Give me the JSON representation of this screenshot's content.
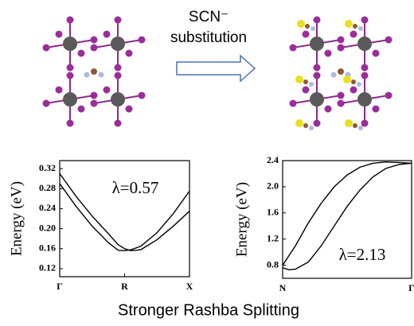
{
  "arrow_label": [
    "SCN⁻",
    "substitution"
  ],
  "caption": "Stronger Rashba Splitting",
  "chart_data": [
    {
      "type": "line",
      "ylabel": "Energy (eV)",
      "annotation": "λ=0.57",
      "x": [
        0,
        0.25,
        0.5,
        0.75,
        0.9,
        1.0,
        1.1,
        1.25,
        1.5,
        1.75,
        2.0
      ],
      "xlim": [
        0,
        2
      ],
      "xticks": [
        {
          "value": 0,
          "label": "Γ"
        },
        {
          "value": 1,
          "label": "R"
        },
        {
          "value": 2,
          "label": "X"
        }
      ],
      "ylim": [
        0.104,
        0.336
      ],
      "yticks": [
        0.12,
        0.16,
        {
          "value": 0.2,
          "label": "0.20"
        },
        0.24,
        0.28,
        0.32
      ],
      "series": [
        {
          "color": "#000000",
          "values": [
            0.29,
            0.245,
            0.205,
            0.172,
            0.157,
            0.156,
            0.158,
            0.165,
            0.192,
            0.23,
            0.275
          ]
        },
        {
          "color": "#000000",
          "values": [
            0.31,
            0.265,
            0.225,
            0.19,
            0.168,
            0.16,
            0.156,
            0.158,
            0.178,
            0.205,
            0.235
          ]
        }
      ]
    },
    {
      "type": "line",
      "ylabel": "Energy (eV)",
      "annotation": "λ=2.13",
      "x": [
        0,
        0.05,
        0.1,
        0.2,
        0.3,
        0.4,
        0.5,
        0.6,
        0.7,
        0.8,
        0.9,
        1.0
      ],
      "xlim": [
        0,
        1
      ],
      "xticks": [
        {
          "value": 0,
          "label": "N"
        },
        {
          "value": 1,
          "label": "Γ"
        }
      ],
      "ylim": [
        0.6,
        2.4
      ],
      "yticks": [
        0.8,
        1.2,
        1.6,
        {
          "value": 2,
          "label": "2.0"
        },
        2.4
      ],
      "series": [
        {
          "color": "#000000",
          "values": [
            0.8,
            0.95,
            1.1,
            1.45,
            1.75,
            2.0,
            2.18,
            2.3,
            2.36,
            2.38,
            2.37,
            2.36
          ]
        },
        {
          "color": "#000000",
          "values": [
            0.76,
            0.73,
            0.74,
            0.85,
            1.1,
            1.4,
            1.7,
            1.95,
            2.15,
            2.28,
            2.34,
            2.36
          ]
        }
      ]
    }
  ]
}
